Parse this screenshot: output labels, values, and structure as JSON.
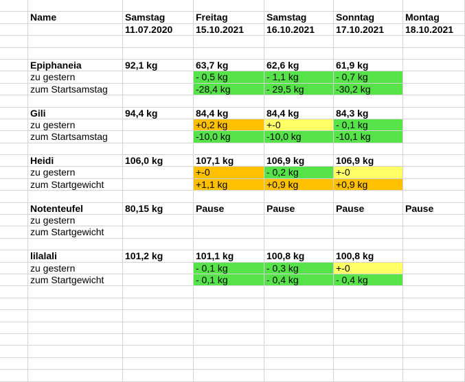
{
  "header": {
    "name": "Name",
    "days": [
      "Samstag",
      "Freitag",
      "Samstag",
      "Sonntag",
      "Montag"
    ],
    "dates": [
      "11.07.2020",
      "15.10.2021",
      "16.10.2021",
      "17.10.2021",
      "18.10.2021"
    ]
  },
  "rows": [
    {
      "cells": [
        "",
        "",
        "",
        "",
        "",
        ""
      ]
    },
    {
      "cells": [
        "",
        "",
        "",
        "",
        "",
        ""
      ]
    },
    {
      "cells": [
        "Epiphaneia",
        "92,1 kg",
        "63,7 kg",
        "62,6 kg",
        "61,9 kg",
        ""
      ],
      "bold": true
    },
    {
      "cells": [
        "zu gestern",
        "",
        "- 0,5 kg",
        "- 1,1 kg",
        "- 0,7 kg",
        ""
      ],
      "colors": [
        "",
        "",
        "green",
        "green",
        "green",
        ""
      ]
    },
    {
      "cells": [
        "zum Startsamstag",
        "",
        "-28,4 kg",
        "- 29,5 kg",
        "-30,2 kg",
        ""
      ],
      "colors": [
        "",
        "",
        "green",
        "green",
        "green",
        ""
      ]
    },
    {
      "cells": [
        "",
        "",
        "",
        "",
        "",
        ""
      ]
    },
    {
      "cells": [
        "Gili",
        "94,4 kg",
        "84,4 kg",
        "84,4 kg",
        "84,3 kg",
        ""
      ],
      "bold": true
    },
    {
      "cells": [
        "zu gestern",
        "",
        "+0,2 kg",
        "+-0",
        "- 0,1 kg",
        ""
      ],
      "colors": [
        "",
        "",
        "orange",
        "yellow",
        "green",
        ""
      ]
    },
    {
      "cells": [
        "zum Startsamstag",
        "",
        "-10,0 kg",
        "-10,0 kg",
        "-10,1 kg",
        ""
      ],
      "colors": [
        "",
        "",
        "green",
        "green",
        "green",
        ""
      ]
    },
    {
      "cells": [
        "",
        "",
        "",
        "",
        "",
        ""
      ]
    },
    {
      "cells": [
        "Heidi",
        "106,0 kg",
        "107,1 kg",
        "106,9 kg",
        "106,9 kg",
        ""
      ],
      "bold": true
    },
    {
      "cells": [
        "zu gestern",
        "",
        "+-0",
        "- 0,2 kg",
        "+-0",
        ""
      ],
      "colors": [
        "",
        "",
        "orange",
        "green",
        "yellow",
        ""
      ]
    },
    {
      "cells": [
        "zum Startgewicht",
        "",
        "+1,1 kg",
        "+0,9 kg",
        "+0,9 kg",
        ""
      ],
      "colors": [
        "",
        "",
        "orange",
        "orange",
        "orange",
        ""
      ]
    },
    {
      "cells": [
        "",
        "",
        "",
        "",
        "",
        ""
      ]
    },
    {
      "cells": [
        "Notenteufel",
        "80,15 kg",
        "Pause",
        "Pause",
        "Pause",
        "Pause"
      ],
      "bold": true
    },
    {
      "cells": [
        "zu gestern",
        "",
        "",
        "",
        "",
        ""
      ]
    },
    {
      "cells": [
        "zum Startgewicht",
        "",
        "",
        "",
        "",
        ""
      ]
    },
    {
      "cells": [
        "",
        "",
        "",
        "",
        "",
        ""
      ]
    },
    {
      "cells": [
        "lilalali",
        "101,2 kg",
        "101,1 kg",
        "100,8 kg",
        "100,8 kg",
        ""
      ],
      "bold": true
    },
    {
      "cells": [
        "zu gestern",
        "",
        "- 0,1 kg",
        "- 0,3 kg",
        "+-0",
        ""
      ],
      "colors": [
        "",
        "",
        "green",
        "green",
        "yellow",
        ""
      ]
    },
    {
      "cells": [
        "zum Startgewicht",
        "",
        "- 0,1 kg",
        "- 0,4 kg",
        "- 0,4 kg",
        ""
      ],
      "colors": [
        "",
        "",
        "green",
        "green",
        "green",
        ""
      ]
    },
    {
      "cells": [
        "",
        "",
        "",
        "",
        "",
        ""
      ]
    },
    {
      "cells": [
        "",
        "",
        "",
        "",
        "",
        ""
      ]
    },
    {
      "cells": [
        "",
        "",
        "",
        "",
        "",
        ""
      ]
    },
    {
      "cells": [
        "",
        "",
        "",
        "",
        "",
        ""
      ]
    },
    {
      "cells": [
        "",
        "",
        "",
        "",
        "",
        ""
      ]
    },
    {
      "cells": [
        "",
        "",
        "",
        "",
        "",
        ""
      ]
    },
    {
      "cells": [
        "",
        "",
        "",
        "",
        "",
        ""
      ]
    },
    {
      "cells": [
        "",
        "",
        "",
        "",
        "",
        ""
      ]
    }
  ],
  "colors": {
    "green": "#55e349",
    "orange": "#ffc000",
    "yellow": "#ffff66",
    "grid": "#d4d4d4"
  }
}
